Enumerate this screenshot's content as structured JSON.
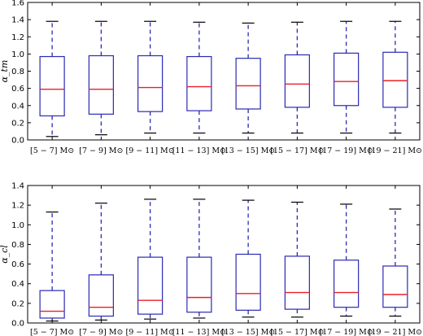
{
  "chart_data": [
    {
      "type": "box",
      "ylabel": "α_tm",
      "ylim": [
        0.0,
        1.6
      ],
      "yticks": [
        "0.0",
        "0.2",
        "0.4",
        "0.6",
        "0.8",
        "1.0",
        "1.2",
        "1.4",
        "1.6"
      ],
      "categories": [
        "[5 − 7] M⊙",
        "[7 − 9] M⊙",
        "[9 − 11] M⊙",
        "[11 − 13] M⊙",
        "[13 − 15] M⊙",
        "[15 − 17] M⊙",
        "[17 − 19] M⊙",
        "[19 − 21] M⊙"
      ],
      "boxes": [
        {
          "whislo": 0.04,
          "q1": 0.28,
          "med": 0.59,
          "q3": 0.97,
          "whishi": 1.38
        },
        {
          "whislo": 0.06,
          "q1": 0.3,
          "med": 0.59,
          "q3": 0.98,
          "whishi": 1.38
        },
        {
          "whislo": 0.08,
          "q1": 0.33,
          "med": 0.61,
          "q3": 0.98,
          "whishi": 1.38
        },
        {
          "whislo": 0.08,
          "q1": 0.34,
          "med": 0.62,
          "q3": 0.97,
          "whishi": 1.37
        },
        {
          "whislo": 0.08,
          "q1": 0.36,
          "med": 0.63,
          "q3": 0.95,
          "whishi": 1.36
        },
        {
          "whislo": 0.08,
          "q1": 0.38,
          "med": 0.65,
          "q3": 0.99,
          "whishi": 1.37
        },
        {
          "whislo": 0.08,
          "q1": 0.4,
          "med": 0.68,
          "q3": 1.01,
          "whishi": 1.38
        },
        {
          "whislo": 0.08,
          "q1": 0.38,
          "med": 0.69,
          "q3": 1.02,
          "whishi": 1.38
        }
      ]
    },
    {
      "type": "box",
      "ylabel": "α_cl",
      "ylim": [
        0.0,
        1.4
      ],
      "yticks": [
        "0.0",
        "0.2",
        "0.4",
        "0.6",
        "0.8",
        "1.0",
        "1.2",
        "1.4"
      ],
      "categories": [
        "[5 − 7] M⊙",
        "[7 − 9] M⊙",
        "[9 − 11] M⊙",
        "[11 − 13] M⊙",
        "[13 − 15] M⊙",
        "[15 − 17] M⊙",
        "[17 − 19] M⊙",
        "[19 − 21] M⊙"
      ],
      "boxes": [
        {
          "whislo": 0.02,
          "q1": 0.05,
          "med": 0.12,
          "q3": 0.33,
          "whishi": 1.13
        },
        {
          "whislo": 0.03,
          "q1": 0.07,
          "med": 0.16,
          "q3": 0.49,
          "whishi": 1.22
        },
        {
          "whislo": 0.04,
          "q1": 0.09,
          "med": 0.23,
          "q3": 0.67,
          "whishi": 1.26
        },
        {
          "whislo": 0.05,
          "q1": 0.11,
          "med": 0.26,
          "q3": 0.67,
          "whishi": 1.26
        },
        {
          "whislo": 0.06,
          "q1": 0.13,
          "med": 0.3,
          "q3": 0.7,
          "whishi": 1.25
        },
        {
          "whislo": 0.06,
          "q1": 0.14,
          "med": 0.31,
          "q3": 0.68,
          "whishi": 1.23
        },
        {
          "whislo": 0.07,
          "q1": 0.16,
          "med": 0.31,
          "q3": 0.64,
          "whishi": 1.21
        },
        {
          "whislo": 0.07,
          "q1": 0.16,
          "med": 0.29,
          "q3": 0.58,
          "whishi": 1.16
        }
      ]
    }
  ],
  "colors": {
    "box": "#2a2ab3",
    "median": "#e8202a",
    "whisker": "#2a2ab3",
    "cap": "#000000",
    "axis": "#000000"
  }
}
